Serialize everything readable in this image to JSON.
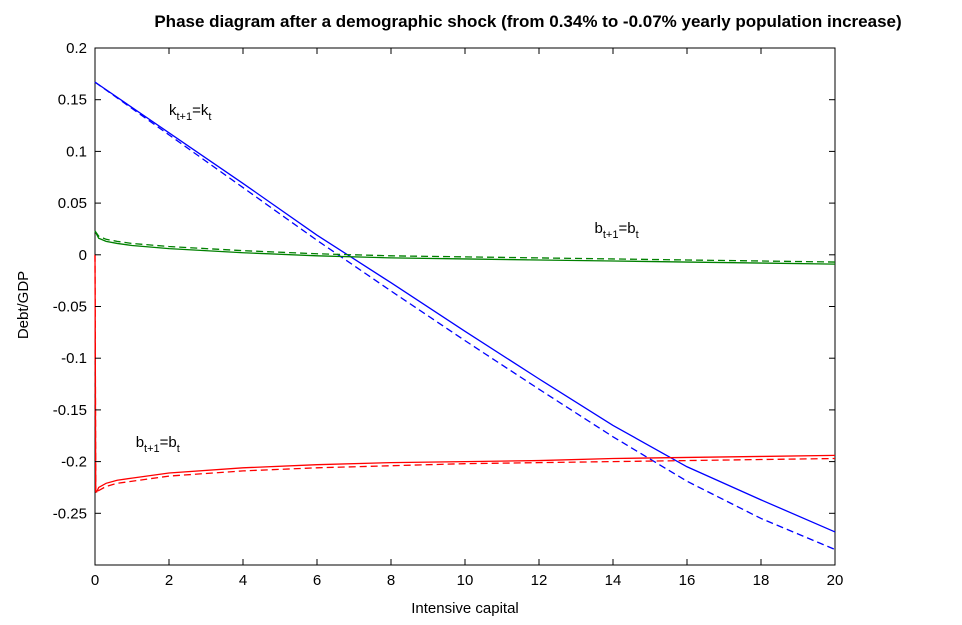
{
  "chart_data": {
    "type": "line",
    "title": "Phase diagram after a demographic shock (from 0.34% to -0.07% yearly population increase)",
    "xlabel": "Intensive capital",
    "ylabel": "Debt/GDP",
    "xlim": [
      0,
      20
    ],
    "ylim": [
      -0.3,
      0.2
    ],
    "xticks": [
      0,
      2,
      4,
      6,
      8,
      10,
      12,
      14,
      16,
      18,
      20
    ],
    "yticks": [
      -0.25,
      -0.2,
      -0.15,
      -0.1,
      -0.05,
      0,
      0.05,
      0.1,
      0.15,
      0.2
    ],
    "xtick_labels": [
      "0",
      "2",
      "4",
      "6",
      "8",
      "10",
      "12",
      "14",
      "16",
      "18",
      "20"
    ],
    "ytick_labels": [
      "-0.25",
      "-0.2",
      "-0.15",
      "-0.1",
      "-0.05",
      "0",
      "0.05",
      "0.1",
      "0.15",
      "0.2"
    ],
    "grid": false,
    "series": [
      {
        "color": "#0000ff",
        "style": "solid",
        "x": [
          0,
          2,
          4,
          6,
          8,
          10,
          12,
          14,
          16,
          18,
          20
        ],
        "y": [
          0.167,
          0.118,
          0.069,
          0.019,
          -0.027,
          -0.074,
          -0.12,
          -0.165,
          -0.205,
          -0.237,
          -0.268
        ]
      },
      {
        "color": "#0000ff",
        "style": "dashed",
        "x": [
          0,
          2,
          4,
          6,
          8,
          10,
          12,
          14,
          16,
          18,
          20
        ],
        "y": [
          0.167,
          0.116,
          0.065,
          0.014,
          -0.035,
          -0.083,
          -0.13,
          -0.176,
          -0.219,
          -0.255,
          -0.285
        ]
      },
      {
        "color": "#008000",
        "style": "solid",
        "x": [
          0,
          0.1,
          0.3,
          0.6,
          1,
          2,
          4,
          6,
          8,
          10,
          12,
          14,
          16,
          18,
          20
        ],
        "y": [
          0.023,
          0.016,
          0.013,
          0.011,
          0.009,
          0.006,
          0.002,
          -0.001,
          -0.003,
          -0.004,
          -0.005,
          -0.006,
          -0.007,
          -0.008,
          -0.009
        ]
      },
      {
        "color": "#008000",
        "style": "dashed",
        "x": [
          0,
          0.1,
          0.3,
          0.6,
          1,
          2,
          4,
          6,
          8,
          10,
          12,
          14,
          16,
          18,
          20
        ],
        "y": [
          0.023,
          0.018,
          0.015,
          0.013,
          0.011,
          0.008,
          0.004,
          0.001,
          -0.001,
          -0.002,
          -0.003,
          -0.004,
          -0.005,
          -0.006,
          -0.007
        ]
      },
      {
        "color": "#ff0000",
        "style": "solid",
        "x": [
          0,
          0.02,
          0.05,
          0.1,
          0.3,
          0.6,
          1,
          2,
          4,
          6,
          8,
          10,
          12,
          14,
          16,
          18,
          20
        ],
        "y": [
          0,
          -0.228,
          -0.229,
          -0.225,
          -0.221,
          -0.218,
          -0.216,
          -0.211,
          -0.206,
          -0.203,
          -0.201,
          -0.2,
          -0.199,
          -0.197,
          -0.196,
          -0.195,
          -0.194
        ]
      },
      {
        "color": "#ff0000",
        "style": "dashed",
        "x": [
          0,
          0.02,
          0.05,
          0.1,
          0.3,
          0.6,
          1,
          2,
          4,
          6,
          8,
          10,
          12,
          14,
          16,
          18,
          20
        ],
        "y": [
          0,
          -0.229,
          -0.231,
          -0.228,
          -0.224,
          -0.221,
          -0.219,
          -0.214,
          -0.209,
          -0.206,
          -0.204,
          -0.202,
          -0.201,
          -0.2,
          -0.199,
          -0.198,
          -0.197
        ]
      }
    ],
    "annotations": [
      {
        "id": "k",
        "base": "k",
        "sub1": "t+1",
        "mid": "=k",
        "sub2": "t",
        "x": 2.0,
        "y": 0.135
      },
      {
        "id": "b-green",
        "base": "b",
        "sub1": "t+1",
        "mid": "=b",
        "sub2": "t",
        "x": 13.5,
        "y": 0.021
      },
      {
        "id": "b-red",
        "base": "b",
        "sub1": "t+1",
        "mid": "=b",
        "sub2": "t",
        "x": 1.1,
        "y": -0.186
      }
    ]
  }
}
